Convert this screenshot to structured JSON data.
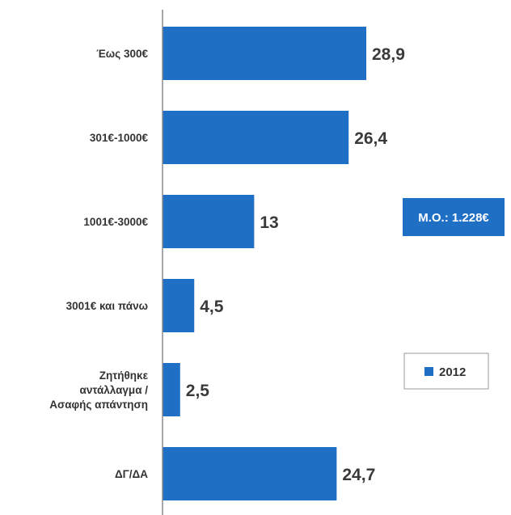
{
  "chart_data": {
    "type": "bar",
    "orientation": "horizontal",
    "categories": [
      [
        "Έως 300€"
      ],
      [
        "301€-1000€"
      ],
      [
        "1001€-3000€"
      ],
      [
        "3001€ και πάνω"
      ],
      [
        "Ζητήθηκε",
        "αντάλλαγμα /",
        "Ασαφής απάντηση"
      ],
      [
        "ΔΓ/ΔΑ"
      ]
    ],
    "series": [
      {
        "name": "2012",
        "values": [
          28.9,
          26.4,
          13,
          4.5,
          2.5,
          24.7
        ]
      }
    ],
    "value_labels": [
      "28,9",
      "26,4",
      "13",
      "4,5",
      "2,5",
      "24,7"
    ],
    "xlim": [
      0,
      36
    ],
    "grid": false,
    "legend_position": "right",
    "annotation": "Μ.Ο.: 1.228€"
  },
  "colors": {
    "bar": "#1f6fc5",
    "axis": "#8a8a8a",
    "badge": "#1f6fc5"
  }
}
